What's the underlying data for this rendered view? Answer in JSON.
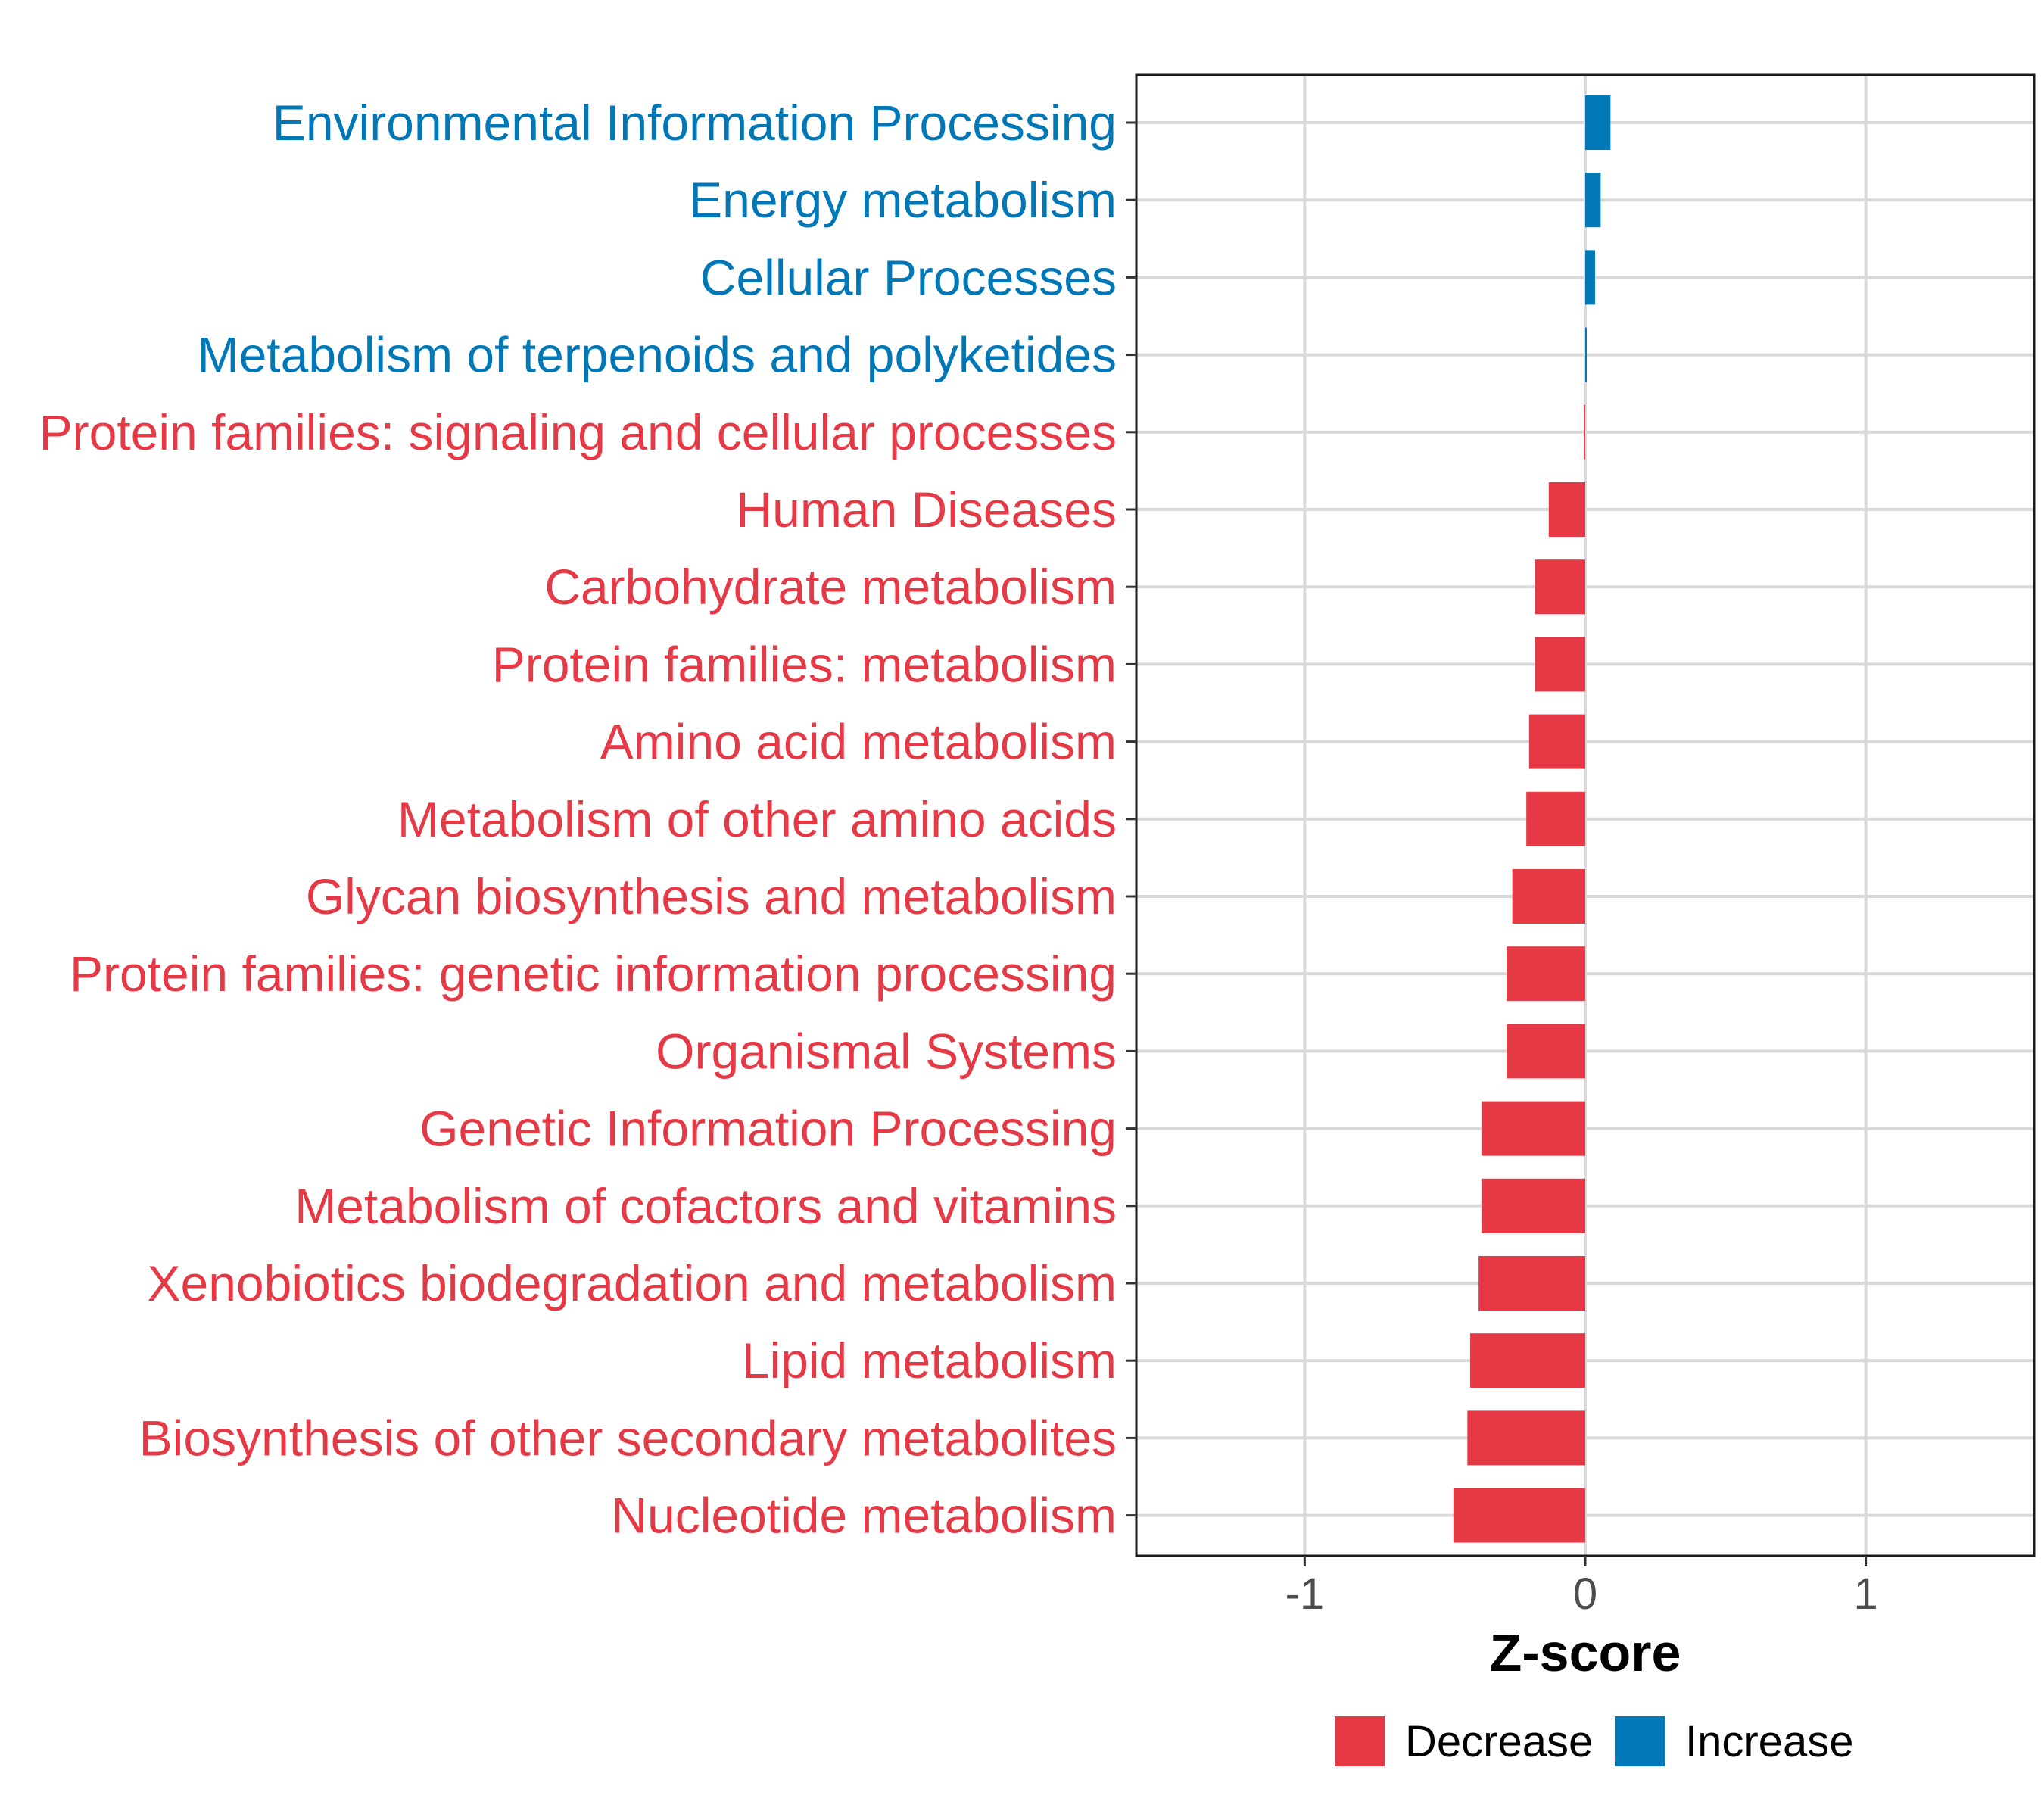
{
  "chart_data": {
    "type": "bar",
    "orientation": "horizontal",
    "title": "",
    "xlabel": "Z-score",
    "ylabel": "",
    "xlim": [
      -1.6,
      1.6
    ],
    "xticks": [
      -1,
      0,
      1
    ],
    "xtick_labels": [
      "-1",
      "0",
      "1"
    ],
    "grid": true,
    "categories": [
      "Environmental Information Processing",
      "Energy metabolism",
      "Cellular Processes",
      "Metabolism of terpenoids and polyketides",
      "Protein families: signaling and cellular processes",
      "Human Diseases",
      "Carbohydrate metabolism",
      "Protein families: metabolism",
      "Amino acid metabolism",
      "Metabolism of other amino acids",
      "Glycan biosynthesis and metabolism",
      "Protein families: genetic information processing",
      "Organismal Systems",
      "Genetic Information Processing",
      "Metabolism of cofactors and vitamins",
      "Xenobiotics biodegradation and metabolism",
      "Lipid metabolism",
      "Biosynthesis of other secondary metabolites",
      "Nucleotide metabolism"
    ],
    "values": [
      0.09,
      0.055,
      0.035,
      0.003,
      -0.003,
      -0.13,
      -0.18,
      -0.18,
      -0.2,
      -0.21,
      -0.26,
      -0.28,
      -0.28,
      -0.37,
      -0.37,
      -0.38,
      -0.41,
      -0.42,
      -0.47
    ],
    "groups": [
      "Increase",
      "Increase",
      "Increase",
      "Increase",
      "Decrease",
      "Decrease",
      "Decrease",
      "Decrease",
      "Decrease",
      "Decrease",
      "Decrease",
      "Decrease",
      "Decrease",
      "Decrease",
      "Decrease",
      "Decrease",
      "Decrease",
      "Decrease",
      "Decrease"
    ],
    "legend": {
      "position": "bottom",
      "entries": [
        {
          "label": "Decrease",
          "color": "#E63946"
        },
        {
          "label": "Increase",
          "color": "#0077B6"
        }
      ]
    },
    "colors": {
      "Decrease": "#E63946",
      "Increase": "#0077B6"
    }
  }
}
